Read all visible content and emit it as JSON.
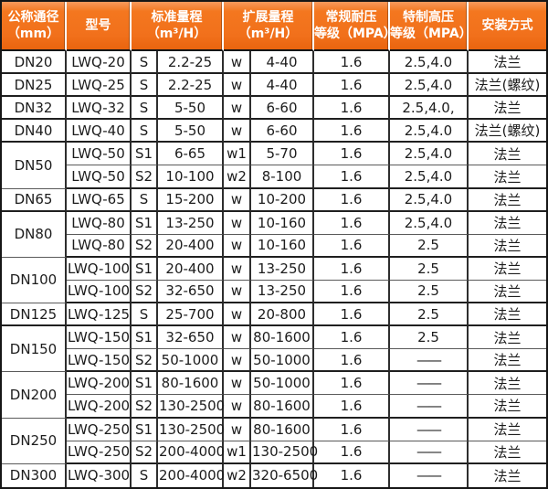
{
  "colors": {
    "header_orange": "#f1701b",
    "header_orange_light": "#f99a5c",
    "header_orange_dark": "#e9640e",
    "header_text": "#ffffff",
    "grid_border": "#1f1f1f",
    "cell_text": "#1c1c1c",
    "background": "#ffffff"
  },
  "table": {
    "headers": [
      {
        "line1": "公称通径",
        "line2": "（mm）"
      },
      {
        "line1": "型号",
        "line2": ""
      },
      {
        "line1": "标准量程",
        "line2": "（m³/H）"
      },
      {
        "line1": "扩展量程",
        "line2": "（m³/H）"
      },
      {
        "line1": "常规耐压",
        "line2": "等级（MPA）"
      },
      {
        "line1": "特制高压",
        "line2": "等级（MPA）"
      },
      {
        "line1": "安装方式",
        "line2": ""
      }
    ],
    "groups": [
      {
        "dn": "DN20",
        "rows": [
          {
            "model": "LWQ-20",
            "s": "S",
            "std": "2.2-25",
            "w": "w",
            "ext": "4-40",
            "normal": "1.6",
            "high": "2.5,4.0",
            "install": "法兰"
          }
        ]
      },
      {
        "dn": "DN25",
        "rows": [
          {
            "model": "LWQ-25",
            "s": "S",
            "std": "2.2-25",
            "w": "w",
            "ext": "4-40",
            "normal": "1.6",
            "high": "2.5,4.0",
            "install": "法兰(螺纹)"
          }
        ]
      },
      {
        "dn": "DN32",
        "rows": [
          {
            "model": "LWQ-32",
            "s": "S",
            "std": "5-50",
            "w": "w",
            "ext": "6-60",
            "normal": "1.6",
            "high": "2.5,4.0,",
            "install": "法兰"
          }
        ]
      },
      {
        "dn": "DN40",
        "rows": [
          {
            "model": "LWQ-40",
            "s": "S",
            "std": "5-50",
            "w": "w",
            "ext": "6-60",
            "normal": "1.6",
            "high": "2.5,4.0",
            "install": "法兰(螺纹)"
          }
        ]
      },
      {
        "dn": "DN50",
        "rows": [
          {
            "model": "LWQ-50",
            "s": "S1",
            "std": "6-65",
            "w": "w1",
            "ext": "5-70",
            "normal": "1.6",
            "high": "2.5,4.0",
            "install": "法兰"
          },
          {
            "model": "LWQ-50",
            "s": "S2",
            "std": "10-100",
            "w": "w2",
            "ext": "8-100",
            "normal": "1.6",
            "high": "2.5,4.0",
            "install": "法兰"
          }
        ]
      },
      {
        "dn": "DN65",
        "rows": [
          {
            "model": "LWQ-65",
            "s": "S",
            "std": "15-200",
            "w": "w",
            "ext": "10-200",
            "normal": "1.6",
            "high": "2.5,4.0",
            "install": "法兰"
          }
        ]
      },
      {
        "dn": "DN80",
        "rows": [
          {
            "model": "LWQ-80",
            "s": "S1",
            "std": "13-250",
            "w": "w",
            "ext": "10-160",
            "normal": "1.6",
            "high": "2.5,4.0",
            "install": "法兰"
          },
          {
            "model": "LWQ-80",
            "s": "S2",
            "std": "20-400",
            "w": "w",
            "ext": "10-160",
            "normal": "1.6",
            "high": "2.5",
            "install": "法兰"
          }
        ]
      },
      {
        "dn": "DN100",
        "rows": [
          {
            "model": "LWQ-100",
            "s": "S1",
            "std": "20-400",
            "w": "w",
            "ext": "13-250",
            "normal": "1.6",
            "high": "2.5",
            "install": "法兰"
          },
          {
            "model": "LWQ-100",
            "s": "S2",
            "std": "32-650",
            "w": "w",
            "ext": "13-250",
            "normal": "1.6",
            "high": "2.5",
            "install": "法兰"
          }
        ]
      },
      {
        "dn": "DN125",
        "rows": [
          {
            "model": "LWQ-125",
            "s": "S",
            "std": "25-700",
            "w": "w",
            "ext": "20-800",
            "normal": "1.6",
            "high": "2.5",
            "install": "法兰"
          }
        ]
      },
      {
        "dn": "DN150",
        "rows": [
          {
            "model": "LWQ-150",
            "s": "S1",
            "std": "32-650",
            "w": "w",
            "ext": "80-1600",
            "normal": "1.6",
            "high": "2.5",
            "install": "法兰"
          },
          {
            "model": "LWQ-150",
            "s": "S2",
            "std": "50-1000",
            "w": "w",
            "ext": "50-1000",
            "normal": "1.6",
            "high": "——",
            "install": "法兰"
          }
        ]
      },
      {
        "dn": "DN200",
        "rows": [
          {
            "model": "LWQ-200",
            "s": "S1",
            "std": "80-1600",
            "w": "w",
            "ext": "50-1000",
            "normal": "1.6",
            "high": "——",
            "install": "法兰"
          },
          {
            "model": "LWQ-200",
            "s": "S2",
            "std": "130-2500",
            "w": "w",
            "ext": "80-1600",
            "normal": "1.6",
            "high": "——",
            "install": "法兰"
          }
        ]
      },
      {
        "dn": "DN250",
        "rows": [
          {
            "model": "LWQ-250",
            "s": "S1",
            "std": "130-2500",
            "w": "w",
            "ext": "80-1600",
            "normal": "1.6",
            "high": "——",
            "install": "法兰"
          },
          {
            "model": "LWQ-250",
            "s": "S2",
            "std": "200-4000",
            "w": "w1",
            "ext": "130-2500",
            "normal": "1.6",
            "high": "——",
            "install": "法兰"
          }
        ]
      },
      {
        "dn": "DN300",
        "rows": [
          {
            "model": "LWQ-300",
            "s": "S",
            "std": "200-4000",
            "w": "w2",
            "ext": "320-6500",
            "normal": "1.6",
            "high": "——",
            "install": "法兰"
          }
        ]
      }
    ]
  }
}
